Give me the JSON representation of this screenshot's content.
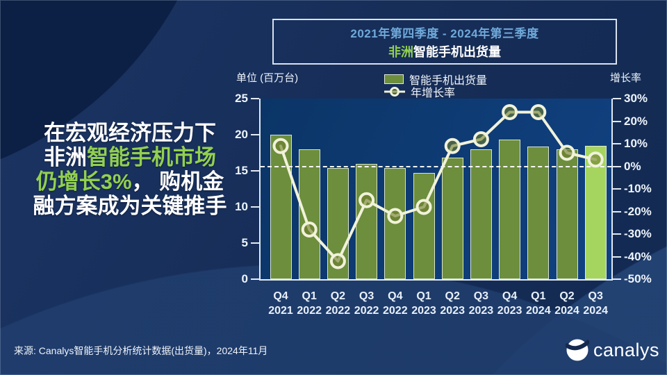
{
  "colors": {
    "accent_green": "#92d050",
    "period_blue": "#6fa9da",
    "bar_green": "#6d8e3d",
    "bar_highlight": "#a6d55f",
    "line_cream": "#f1f2da",
    "plot_bg": "#0d3b73"
  },
  "headline": {
    "lines": [
      [
        {
          "t": "在宏观经济压力下",
          "c": "white"
        }
      ],
      [
        {
          "t": "非洲",
          "c": "white"
        },
        {
          "t": "智能手机市场",
          "c": "green"
        }
      ],
      [
        {
          "t": "仍增长3%",
          "c": "green"
        },
        {
          "t": "， 购机金",
          "c": "white"
        }
      ],
      [
        {
          "t": "融方案成为关键推手",
          "c": "white"
        }
      ]
    ]
  },
  "title_box": {
    "period": "2021年第四季度 - 2024年第三季度",
    "region": "非洲",
    "subject": "智能手机出货量"
  },
  "chart_data": {
    "type": "bar+line",
    "title": "非洲智能手机出货量",
    "categories": [
      [
        "Q4",
        "2021"
      ],
      [
        "Q1",
        "2022"
      ],
      [
        "Q2",
        "2022"
      ],
      [
        "Q3",
        "2022"
      ],
      [
        "Q4",
        "2022"
      ],
      [
        "Q1",
        "2023"
      ],
      [
        "Q2",
        "2023"
      ],
      [
        "Q3",
        "2023"
      ],
      [
        "Q4",
        "2023"
      ],
      [
        "Q1",
        "2024"
      ],
      [
        "Q2",
        "2024"
      ],
      [
        "Q3",
        "2024"
      ]
    ],
    "series": [
      {
        "name": "智能手机出货量",
        "type": "bar",
        "unit": "百万台",
        "highlight_index": 11,
        "values": [
          20.0,
          18.0,
          15.4,
          16.0,
          15.4,
          14.7,
          16.8,
          18.0,
          19.3,
          18.4,
          18.0,
          18.5
        ]
      },
      {
        "name": "年增长率",
        "type": "line",
        "unit": "%",
        "values": [
          9,
          -28,
          -42,
          -15,
          -22,
          -18,
          9,
          12,
          24,
          24,
          6,
          3
        ]
      }
    ],
    "left_axis": {
      "label": "单位 (百万台)",
      "ticks": [
        25,
        20,
        15,
        10,
        5,
        0
      ],
      "range": [
        0,
        25
      ]
    },
    "right_axis": {
      "label": "增长率",
      "ticks": [
        "30%",
        "20%",
        "10%",
        "0%",
        "-10%",
        "-20%",
        "-30%",
        "-40%",
        "-50%"
      ],
      "range": [
        -50,
        30
      ],
      "zero_line": "dashed"
    },
    "legend_position": "top",
    "grid": "off"
  },
  "source": "来源: Canalys智能手机分析统计数据(出货量)，2024年11月",
  "logo": {
    "text": "canalys"
  }
}
